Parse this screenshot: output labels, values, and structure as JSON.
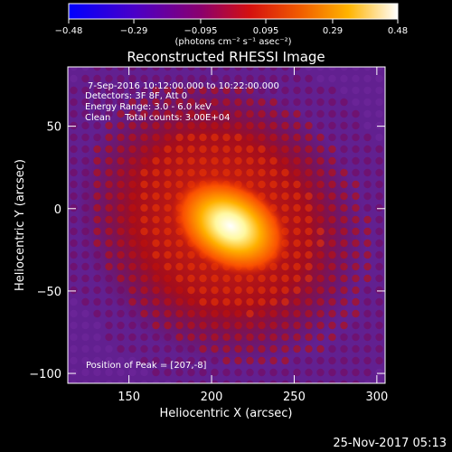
{
  "chart_data": {
    "type": "heatmap",
    "title": "Reconstructed RHESSI Image",
    "xlabel": "Heliocentric X (arcsec)",
    "ylabel": "Heliocentric Y (arcsec)",
    "xlim": [
      113,
      305
    ],
    "ylim": [
      -106,
      86
    ],
    "xticks": [
      150,
      200,
      250,
      300
    ],
    "xtick_labels": [
      "150",
      "200",
      "250",
      "300"
    ],
    "yticks": [
      -100,
      -50,
      0,
      50
    ],
    "ytick_labels": [
      "−100",
      "−50",
      "0",
      "50"
    ],
    "colorbar": {
      "range": [
        -0.48,
        0.48
      ],
      "ticks": [
        -0.48,
        -0.29,
        -0.095,
        0.095,
        0.29,
        0.48
      ],
      "tick_labels": [
        "−0.48",
        "−0.29",
        "−0.095",
        "0.095",
        "0.29",
        "0.48"
      ],
      "unit_label": "(photons cm⁻² s⁻¹ asec⁻²)"
    },
    "annotations": [
      "7-Sep-2016 10:12:00.000 to 10:22:00.000",
      "Detectors: 3F 8F, Att 0",
      "Energy Range: 3.0 - 6.0 keV",
      "Clean     Total counts: 3.00E+04"
    ],
    "peak_label": "Position of Peak = [207,-8]",
    "peak": {
      "x": 207,
      "y": -8,
      "value": 0.48
    },
    "grid": false
  },
  "footer": {
    "timestamp": "25-Nov-2017 05:13"
  }
}
